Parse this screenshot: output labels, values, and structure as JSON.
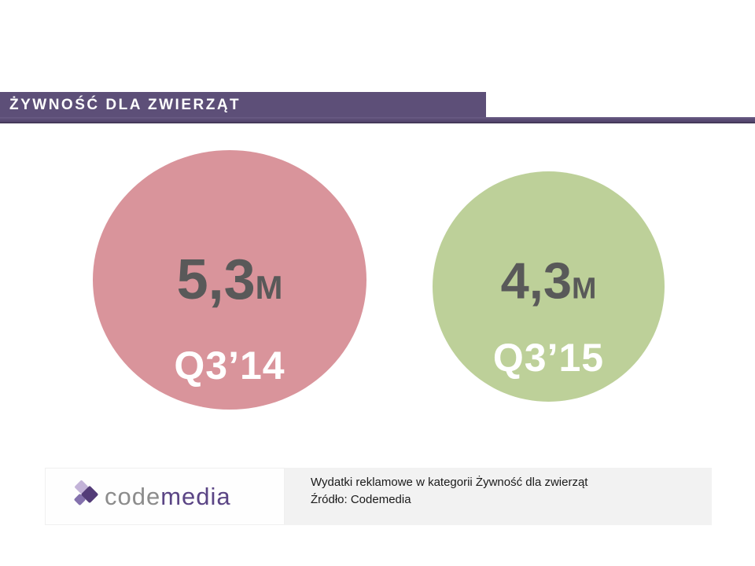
{
  "header": {
    "title": "ŻYWNOŚĆ DLA ZWIERZĄT",
    "bar_color": "#5d4f78"
  },
  "chart_data": {
    "type": "bar",
    "variant": "proportional-area-circles",
    "categories": [
      "Q3’14",
      "Q3’15"
    ],
    "values": [
      5.3,
      4.3
    ],
    "value_labels": [
      "5,3M",
      "4,3M"
    ],
    "unit": "M",
    "series_colors": [
      "#d9949b",
      "#bdd099"
    ],
    "value_text_color": "#595959",
    "label_text_color": "#ffffff",
    "title": "Wydatki reklamowe w kategorii Żywność dla zwierząt",
    "source": "Źródło: Codemedia",
    "legend_position": "none",
    "grid": false
  },
  "bubbles": [
    {
      "value": "5,3",
      "unit": "M",
      "label": "Q3’14",
      "color": "#d9949b"
    },
    {
      "value": "4,3",
      "unit": "M",
      "label": "Q3’15",
      "color": "#bdd099"
    }
  ],
  "footer": {
    "logo": {
      "part_gray": "code",
      "part_purple": "media"
    },
    "caption_line1": "Wydatki reklamowe w kategorii Żywność dla zwierząt",
    "caption_line2": "Źródło: Codemedia"
  }
}
